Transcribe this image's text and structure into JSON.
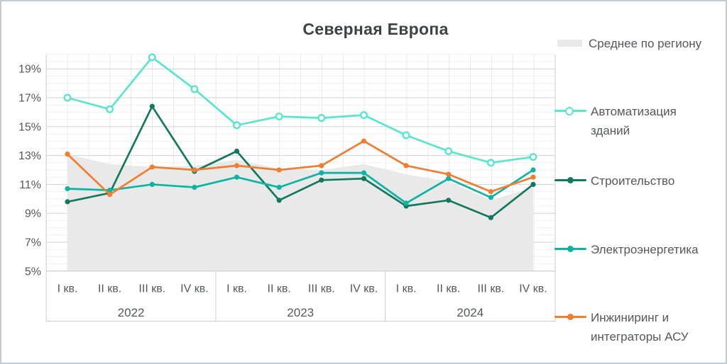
{
  "chart_data": {
    "type": "line",
    "title": "Северная Европа",
    "ylim": [
      5,
      20
    ],
    "grid": true,
    "legend_position": "right",
    "y_ticks": [
      {
        "value": 19,
        "label": "19%"
      },
      {
        "value": 17,
        "label": "17%"
      },
      {
        "value": 15,
        "label": "15%"
      },
      {
        "value": 13,
        "label": "13%"
      },
      {
        "value": 11,
        "label": "11%"
      },
      {
        "value": 9,
        "label": "9%"
      },
      {
        "value": 7,
        "label": "7%"
      },
      {
        "value": 5,
        "label": "5%"
      }
    ],
    "year_groups": [
      {
        "label": "2022",
        "quarters": [
          "I кв.",
          "II кв.",
          "III кв.",
          "IV кв."
        ]
      },
      {
        "label": "2023",
        "quarters": [
          "I кв.",
          "II кв.",
          "III кв.",
          "IV кв."
        ]
      },
      {
        "label": "2024",
        "quarters": [
          "I кв.",
          "II кв.",
          "III кв.",
          "IV кв."
        ]
      }
    ],
    "area_series": {
      "id": "average",
      "name": "Среднее по региону",
      "color": "#e9e9e9",
      "values": [
        13.1,
        12.4,
        12.2,
        12.3,
        12.7,
        12.1,
        12.0,
        12.4,
        11.7,
        11.2,
        9.9,
        10.8
      ]
    },
    "series": [
      {
        "id": "building-automation",
        "name": "Автоматизация зданий",
        "color": "#58e6ce",
        "marker": "open",
        "values": [
          17.0,
          16.2,
          19.8,
          17.6,
          15.1,
          15.7,
          15.6,
          15.8,
          14.4,
          13.3,
          12.5,
          12.9
        ]
      },
      {
        "id": "construction",
        "name": "Строительство",
        "color": "#12795f",
        "marker": "filled",
        "values": [
          9.8,
          10.4,
          16.4,
          11.9,
          13.3,
          9.9,
          11.3,
          11.4,
          9.5,
          9.9,
          8.7,
          11.0
        ]
      },
      {
        "id": "power",
        "name": "Электроэнергетика",
        "color": "#0db4a4",
        "marker": "filled",
        "values": [
          10.7,
          10.6,
          11.0,
          10.8,
          11.5,
          10.8,
          11.8,
          11.8,
          9.7,
          11.4,
          10.1,
          12.0
        ]
      },
      {
        "id": "engineering",
        "name": "Инжиниринг и интеграторы АСУ",
        "color": "#f37d2e",
        "marker": "filled",
        "values": [
          13.1,
          10.3,
          12.2,
          12.0,
          12.3,
          12.0,
          12.3,
          14.0,
          12.3,
          11.7,
          10.5,
          11.5
        ]
      }
    ]
  },
  "legend": {
    "items": [
      {
        "label": "Среднее по региону",
        "type": "area",
        "color": "#e9e9e9"
      },
      {
        "label": "Автоматизация\nзданий",
        "type": "line",
        "marker": "open",
        "color": "#58e6ce"
      },
      {
        "label": "Строительство",
        "type": "line",
        "marker": "filled",
        "color": "#12795f"
      },
      {
        "label": "Электроэнергетика",
        "type": "line",
        "marker": "filled",
        "color": "#0db4a4"
      },
      {
        "label": "Инжиниринг и\nинтеграторы АСУ",
        "type": "line",
        "marker": "filled",
        "color": "#f37d2e"
      }
    ]
  },
  "styles": {
    "grid_major": "#d3d3d3",
    "grid_minor": "#f1f1f1",
    "grid_vertical": "#e8e8e8",
    "axis_line": "#cdcdcd",
    "label_color": "#55575c",
    "title_color": "#3f4145",
    "border_color": "#c3ccd2"
  }
}
